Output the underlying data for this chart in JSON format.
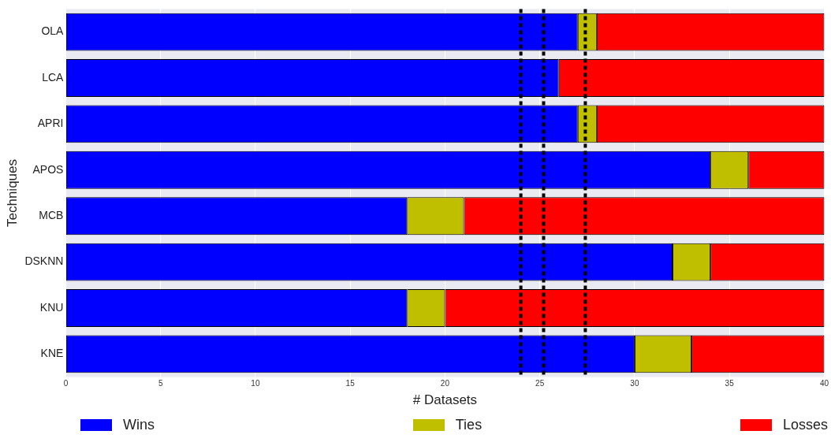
{
  "chart_data": {
    "type": "bar",
    "orientation": "horizontal",
    "stacked": true,
    "xlabel": "# Datasets",
    "ylabel": "Techniques",
    "categories": [
      "OLA",
      "LCA",
      "APRI",
      "APOS",
      "MCB",
      "DSKNN",
      "KNU",
      "KNE"
    ],
    "series": [
      {
        "name": "Wins",
        "color": "#0000ff",
        "values": [
          27,
          26,
          27,
          34,
          18,
          32,
          18,
          30
        ]
      },
      {
        "name": "Ties",
        "color": "#bfbf00",
        "values": [
          1,
          0,
          1,
          2,
          3,
          2,
          2,
          3
        ]
      },
      {
        "name": "Losses",
        "color": "#ff0000",
        "values": [
          12,
          14,
          12,
          4,
          19,
          6,
          20,
          7
        ]
      }
    ],
    "xlim": [
      0,
      40
    ],
    "xticks": [
      0,
      5,
      10,
      15,
      20,
      25,
      30,
      35,
      40
    ],
    "grid": "x",
    "legend": "bottom",
    "ref_lines": [
      {
        "axis": "x",
        "value": 24,
        "color": "#000000",
        "line_style": "dotted"
      },
      {
        "axis": "x",
        "value": 25.2,
        "color": "#000000",
        "line_style": "dotted"
      },
      {
        "axis": "x",
        "value": 27.4,
        "color": "#000000",
        "line_style": "dotted"
      }
    ]
  }
}
